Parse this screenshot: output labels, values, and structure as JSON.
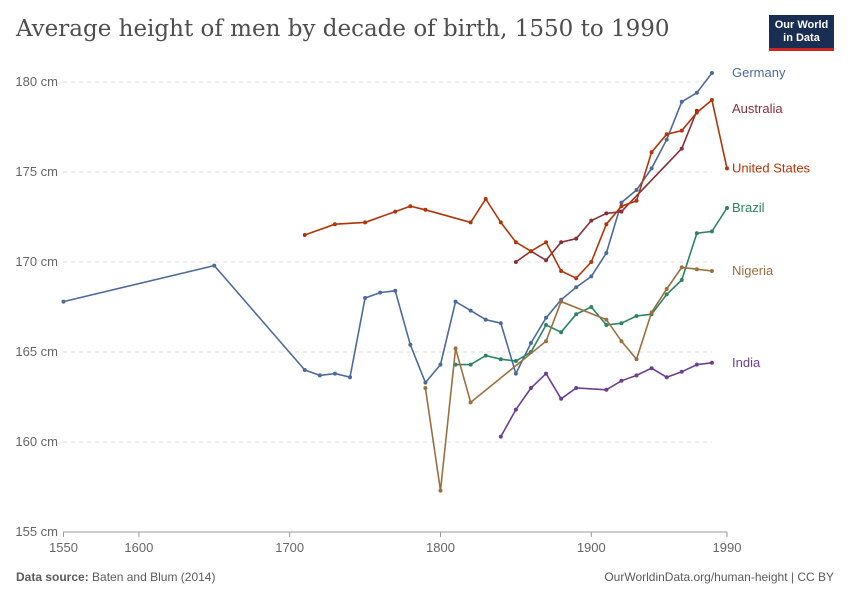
{
  "title": "Average height of men by decade of birth, 1550 to 1990",
  "logo": "Our World in Data",
  "footer": {
    "source_label": "Data source:",
    "source": "Baten and Blum (2014)",
    "credit": "OurWorldinData.org/human-height | CC BY"
  },
  "chart_data": {
    "type": "line",
    "xlim": [
      1550,
      1990
    ],
    "ylim": [
      155,
      180
    ],
    "x_ticks": [
      1550,
      1600,
      1700,
      1800,
      1900,
      1990
    ],
    "y_ticks": [
      {
        "v": 155,
        "label": "155 cm"
      },
      {
        "v": 160,
        "label": "160 cm"
      },
      {
        "v": 165,
        "label": "165 cm"
      },
      {
        "v": 170,
        "label": "170 cm"
      },
      {
        "v": 175,
        "label": "175 cm"
      },
      {
        "v": 180,
        "label": "180 cm"
      }
    ],
    "grid": "horizontal dashed",
    "legend": "right, labels at line ends",
    "series": [
      {
        "name": "Germany",
        "color": "#4c6a9c",
        "points": [
          [
            1550,
            167.8
          ],
          [
            1650,
            169.8
          ],
          [
            1710,
            164.0
          ],
          [
            1720,
            163.7
          ],
          [
            1730,
            163.8
          ],
          [
            1740,
            163.6
          ],
          [
            1750,
            168.0
          ],
          [
            1760,
            168.3
          ],
          [
            1770,
            168.4
          ],
          [
            1780,
            165.4
          ],
          [
            1790,
            163.3
          ],
          [
            1800,
            164.3
          ],
          [
            1810,
            167.8
          ],
          [
            1820,
            167.3
          ],
          [
            1830,
            166.8
          ],
          [
            1840,
            166.6
          ],
          [
            1850,
            163.8
          ],
          [
            1860,
            165.5
          ],
          [
            1870,
            166.9
          ],
          [
            1880,
            167.9
          ],
          [
            1890,
            168.6
          ],
          [
            1900,
            169.2
          ],
          [
            1910,
            170.5
          ],
          [
            1920,
            173.3
          ],
          [
            1930,
            174.0
          ],
          [
            1940,
            175.2
          ],
          [
            1950,
            176.8
          ],
          [
            1960,
            178.9
          ],
          [
            1970,
            179.4
          ],
          [
            1980,
            180.5
          ]
        ]
      },
      {
        "name": "Australia",
        "color": "#883039",
        "points": [
          [
            1850,
            170.0
          ],
          [
            1860,
            170.6
          ],
          [
            1870,
            170.1
          ],
          [
            1880,
            171.1
          ],
          [
            1890,
            171.3
          ],
          [
            1900,
            172.3
          ],
          [
            1910,
            172.7
          ],
          [
            1920,
            172.8
          ],
          [
            1960,
            176.3
          ],
          [
            1970,
            178.4
          ]
        ]
      },
      {
        "name": "United States",
        "color": "#b13507",
        "points": [
          [
            1710,
            171.5
          ],
          [
            1730,
            172.1
          ],
          [
            1750,
            172.2
          ],
          [
            1770,
            172.8
          ],
          [
            1780,
            173.1
          ],
          [
            1790,
            172.9
          ],
          [
            1820,
            172.2
          ],
          [
            1830,
            173.5
          ],
          [
            1840,
            172.2
          ],
          [
            1850,
            171.1
          ],
          [
            1860,
            170.6
          ],
          [
            1870,
            171.1
          ],
          [
            1880,
            169.5
          ],
          [
            1890,
            169.1
          ],
          [
            1900,
            170.0
          ],
          [
            1910,
            172.1
          ],
          [
            1920,
            173.1
          ],
          [
            1930,
            173.4
          ],
          [
            1940,
            176.1
          ],
          [
            1950,
            177.1
          ],
          [
            1960,
            177.3
          ],
          [
            1970,
            178.3
          ],
          [
            1980,
            179.0
          ],
          [
            1990,
            175.2
          ]
        ]
      },
      {
        "name": "Brazil",
        "color": "#2c8465",
        "points": [
          [
            1810,
            164.3
          ],
          [
            1820,
            164.3
          ],
          [
            1830,
            164.8
          ],
          [
            1840,
            164.6
          ],
          [
            1850,
            164.5
          ],
          [
            1860,
            165.0
          ],
          [
            1870,
            166.5
          ],
          [
            1880,
            166.1
          ],
          [
            1890,
            167.1
          ],
          [
            1900,
            167.5
          ],
          [
            1910,
            166.5
          ],
          [
            1920,
            166.6
          ],
          [
            1930,
            167.0
          ],
          [
            1940,
            167.1
          ],
          [
            1950,
            168.2
          ],
          [
            1960,
            169.0
          ],
          [
            1970,
            171.6
          ],
          [
            1980,
            171.7
          ],
          [
            1990,
            173.0
          ]
        ]
      },
      {
        "name": "Nigeria",
        "color": "#9a7040",
        "points": [
          [
            1790,
            163.0
          ],
          [
            1800,
            157.3
          ],
          [
            1810,
            165.2
          ],
          [
            1820,
            162.2
          ],
          [
            1870,
            165.6
          ],
          [
            1880,
            167.8
          ],
          [
            1910,
            166.8
          ],
          [
            1920,
            165.6
          ],
          [
            1930,
            164.6
          ],
          [
            1940,
            167.2
          ],
          [
            1950,
            168.5
          ],
          [
            1960,
            169.7
          ],
          [
            1970,
            169.6
          ],
          [
            1980,
            169.5
          ]
        ]
      },
      {
        "name": "India",
        "color": "#6d3e91",
        "points": [
          [
            1840,
            160.3
          ],
          [
            1850,
            161.8
          ],
          [
            1860,
            163.0
          ],
          [
            1870,
            163.8
          ],
          [
            1880,
            162.4
          ],
          [
            1890,
            163.0
          ],
          [
            1910,
            162.9
          ],
          [
            1920,
            163.4
          ],
          [
            1930,
            163.7
          ],
          [
            1940,
            164.1
          ],
          [
            1950,
            163.6
          ],
          [
            1960,
            163.9
          ],
          [
            1970,
            164.3
          ],
          [
            1980,
            164.4
          ]
        ]
      }
    ]
  }
}
